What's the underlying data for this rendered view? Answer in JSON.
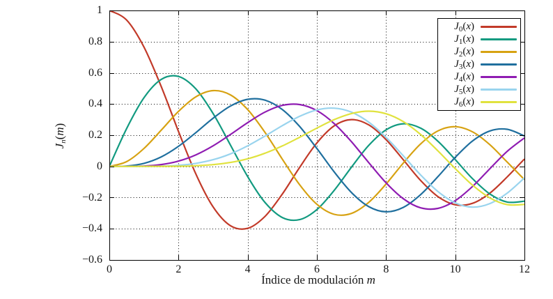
{
  "figure": {
    "xlabel": {
      "text": "Índice de modulación ",
      "var": "m"
    },
    "ylabel": {
      "base": "J",
      "sub": "n",
      "open": "(",
      "var": "m",
      "close": ")"
    },
    "background": "#ffffff",
    "axis_color": "#000000",
    "grid_color": "#000000",
    "text_color": "#151515"
  },
  "chart_data": {
    "type": "line",
    "title": "",
    "xlabel": "Índice de modulación m",
    "ylabel": "J_n(m)",
    "xlim": [
      0,
      12
    ],
    "ylim": [
      -0.6,
      1
    ],
    "xticks": [
      0,
      2,
      4,
      6,
      8,
      10,
      12
    ],
    "yticks": [
      1,
      0.8,
      0.6,
      0.4,
      0.2,
      0,
      -0.2,
      -0.4,
      -0.6
    ],
    "xtick_labels": [
      "0",
      "2",
      "4",
      "6",
      "8",
      "10",
      "12"
    ],
    "ytick_labels": [
      "1",
      "0.8",
      "0.6",
      "0.4",
      "0.2",
      "0",
      "−0.2",
      "−0.4",
      "−0.6"
    ],
    "grid": "dotted",
    "grid_x_positions": [
      2,
      4,
      6,
      8,
      10
    ],
    "grid_y_positions": [
      0.8,
      0.6,
      0.4,
      0.2,
      0,
      -0.2,
      -0.4
    ],
    "legend_position": "top-right",
    "x": [
      0,
      0.5,
      1,
      1.5,
      2,
      2.5,
      3,
      3.5,
      4,
      4.5,
      5,
      5.5,
      6,
      6.5,
      7,
      7.5,
      8,
      8.5,
      9,
      9.5,
      10,
      10.5,
      11,
      11.5,
      12
    ],
    "series": [
      {
        "name": "J0(x)",
        "label_base": "J",
        "label_sub": "0",
        "label_arg": "x",
        "color": "#c23a29",
        "values": [
          1,
          0.9385,
          0.7652,
          0.5118,
          0.2239,
          -0.0484,
          -0.2601,
          -0.3801,
          -0.3971,
          -0.3205,
          -0.1776,
          -0.0068,
          0.1506,
          0.2601,
          0.3001,
          0.2663,
          0.1717,
          0.0419,
          -0.0903,
          -0.1939,
          -0.2459,
          -0.2366,
          -0.1712,
          -0.0677,
          0.0477
        ]
      },
      {
        "name": "J1(x)",
        "label_base": "J",
        "label_sub": "1",
        "label_arg": "x",
        "color": "#129a80",
        "values": [
          0,
          0.2423,
          0.4401,
          0.5579,
          0.5767,
          0.4971,
          0.3391,
          0.1374,
          -0.066,
          -0.2311,
          -0.3276,
          -0.3414,
          -0.2767,
          -0.1538,
          -0.0047,
          0.1352,
          0.2346,
          0.2731,
          0.2453,
          0.1613,
          0.0435,
          -0.0789,
          -0.1768,
          -0.2284,
          -0.2234
        ]
      },
      {
        "name": "J2(x)",
        "label_base": "J",
        "label_sub": "2",
        "label_arg": "x",
        "color": "#d7a212",
        "values": [
          0,
          0.0306,
          0.1149,
          0.2321,
          0.3528,
          0.4461,
          0.4861,
          0.4586,
          0.3641,
          0.2178,
          0.0466,
          -0.1173,
          -0.2429,
          -0.3074,
          -0.3014,
          -0.2303,
          -0.113,
          0.0223,
          0.1448,
          0.2279,
          0.2546,
          0.2216,
          0.139,
          0.0279,
          -0.0849
        ]
      },
      {
        "name": "J3(x)",
        "label_base": "J",
        "label_sub": "3",
        "label_arg": "x",
        "color": "#1f6f9e",
        "values": [
          0,
          0.0026,
          0.0196,
          0.061,
          0.1289,
          0.2166,
          0.3091,
          0.3868,
          0.4302,
          0.4247,
          0.3648,
          0.2561,
          0.1148,
          -0.0353,
          -0.1676,
          -0.2581,
          -0.2911,
          -0.2626,
          -0.1809,
          -0.0653,
          0.0584,
          0.1633,
          0.2273,
          0.2381,
          0.1951
        ]
      },
      {
        "name": "J4(x)",
        "label_base": "J",
        "label_sub": "4",
        "label_arg": "x",
        "color": "#8f1cb2",
        "values": [
          0,
          0.0002,
          0.0025,
          0.0118,
          0.034,
          0.0738,
          0.132,
          0.2043,
          0.2811,
          0.3485,
          0.3912,
          0.3967,
          0.3576,
          0.2747,
          0.1578,
          0.0238,
          -0.1054,
          -0.2077,
          -0.2655,
          -0.2691,
          -0.2196,
          -0.1283,
          -0.015,
          0.0962,
          0.1825
        ]
      },
      {
        "name": "J5(x)",
        "label_base": "J",
        "label_sub": "5",
        "label_arg": "x",
        "color": "#99d4ee",
        "values": [
          0,
          0,
          0.0002,
          0.0018,
          0.007,
          0.0195,
          0.043,
          0.0803,
          0.1321,
          0.1947,
          0.2611,
          0.3209,
          0.3621,
          0.3735,
          0.3478,
          0.2834,
          0.1858,
          0.0671,
          -0.055,
          -0.1613,
          -0.234,
          -0.2611,
          -0.2383,
          -0.1712,
          -0.0735
        ]
      },
      {
        "name": "J6(x)",
        "label_base": "J",
        "label_sub": "6",
        "label_arg": "x",
        "color": "#e0e23e",
        "values": [
          0,
          0,
          0.0002,
          0.0008,
          0.0012,
          0.0042,
          0.0114,
          0.0254,
          0.0491,
          0.0846,
          0.131,
          0.1868,
          0.2458,
          0.2999,
          0.3392,
          0.3541,
          0.3376,
          0.2867,
          0.2043,
          0.0993,
          -0.0145,
          -0.1203,
          -0.2016,
          -0.2451,
          -0.2437
        ]
      }
    ]
  }
}
